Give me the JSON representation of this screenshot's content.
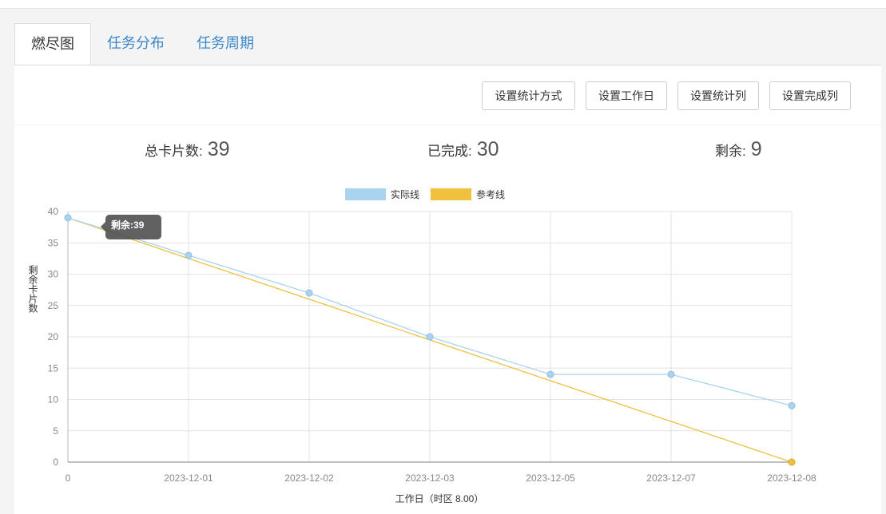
{
  "tabs": [
    {
      "label": "燃尽图",
      "active": true
    },
    {
      "label": "任务分布",
      "active": false
    },
    {
      "label": "任务周期",
      "active": false
    }
  ],
  "toolbar": {
    "stat_method": "设置统计方式",
    "workday": "设置工作日",
    "stat_columns": "设置统计列",
    "done_columns": "设置完成列"
  },
  "stats": {
    "total_label": "总卡片数:",
    "total_value": "39",
    "done_label": "已完成:",
    "done_value": "30",
    "remaining_label": "剩余:",
    "remaining_value": "9"
  },
  "tooltip": {
    "text": "剩余:39"
  },
  "chart_data": {
    "type": "line",
    "categories": [
      "0",
      "2023-12-01",
      "2023-12-02",
      "2023-12-03",
      "2023-12-05",
      "2023-12-07",
      "2023-12-08"
    ],
    "series": [
      {
        "name": "实际线",
        "values": [
          39,
          33,
          27,
          20,
          14,
          14,
          9
        ],
        "color": "#a9d4f0"
      },
      {
        "name": "参考线",
        "values": [
          39,
          32.5,
          26,
          19.5,
          13,
          6.5,
          0
        ],
        "color": "#efc13f"
      }
    ],
    "yticks": [
      "0",
      "5",
      "10",
      "15",
      "20",
      "25",
      "30",
      "35",
      "40"
    ],
    "ylim": [
      0,
      40
    ],
    "xlabel": "工作日（时区 8.00）",
    "ylabel": "剩余卡片数",
    "grid": true,
    "legend_position": "top"
  }
}
